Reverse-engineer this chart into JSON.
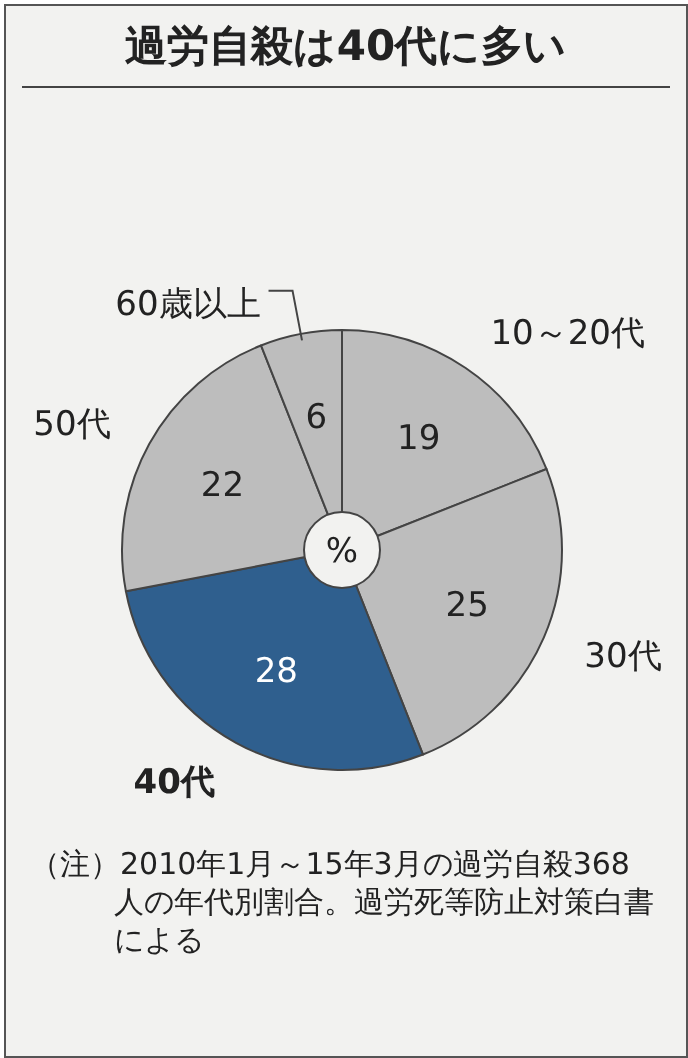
{
  "chart_data": {
    "type": "pie",
    "title": "過労自殺は40代に多い",
    "categories": [
      "10～20代",
      "30代",
      "40代",
      "50代",
      "60歳以上"
    ],
    "values": [
      19,
      25,
      28,
      22,
      6
    ],
    "colors": [
      "#bdbdbd",
      "#bdbdbd",
      "#2f5f8e",
      "#bdbdbd",
      "#bdbdbd"
    ],
    "data_labels": true,
    "annotations": [
      "%",
      "（注）2010年1月～15年3月の過労自殺368人の年代別割合。過労死等防止対策白書による"
    ]
  }
}
